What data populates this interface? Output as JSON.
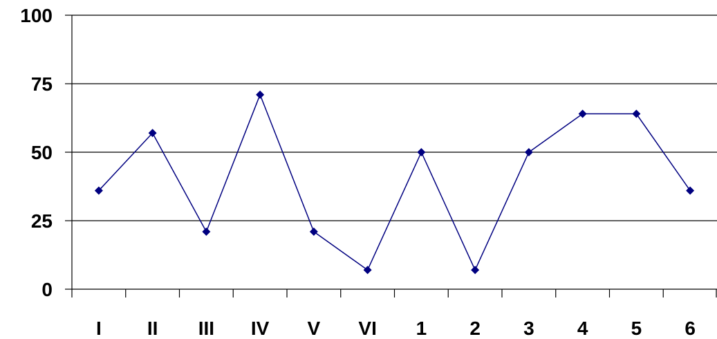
{
  "chart_data": {
    "type": "line",
    "categories": [
      "I",
      "II",
      "III",
      "IV",
      "V",
      "VI",
      "1",
      "2",
      "3",
      "4",
      "5",
      "6"
    ],
    "series": [
      {
        "values": [
          36,
          57,
          21,
          71,
          21,
          7,
          50,
          7,
          50,
          64,
          64,
          36
        ]
      }
    ],
    "yticks": [
      "0",
      "25",
      "50",
      "75",
      "100"
    ],
    "ylim": [
      0,
      100
    ],
    "grid": true,
    "colors": {
      "series": "#000080",
      "axis": "#000000",
      "grid": "#000000"
    }
  }
}
